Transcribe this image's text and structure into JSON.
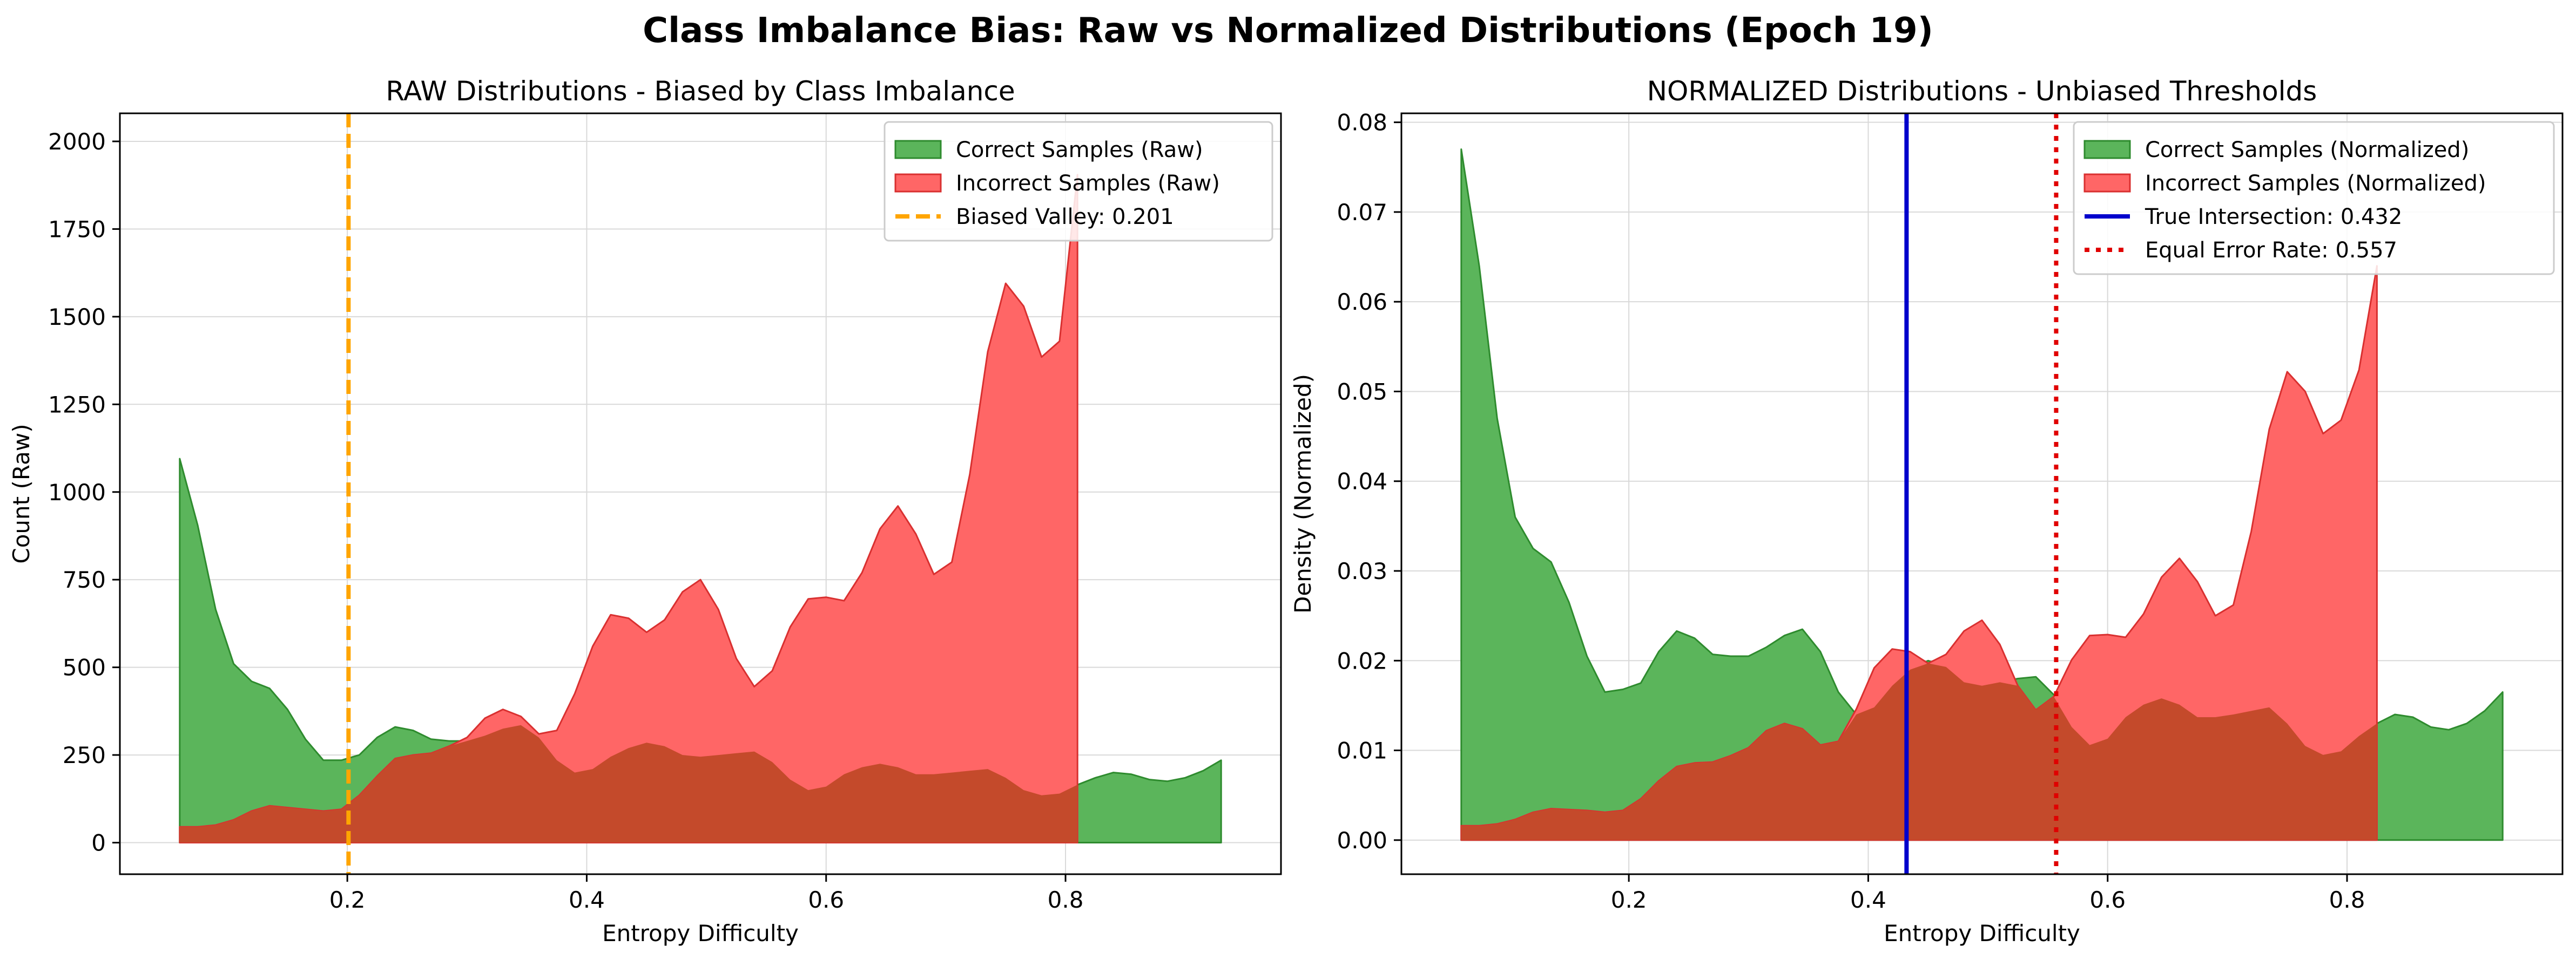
{
  "figure": {
    "suptitle": "Class Imbalance Bias: Raw vs Normalized Distributions (Epoch 19)"
  },
  "colors": {
    "correct_fill": "#5bb55b",
    "correct_edge": "#2e8b2e",
    "incorrect_fill": "#ff6666",
    "incorrect_edge": "#d93030",
    "overlap_fill": "#c44a2b",
    "biased_valley": "#ffa500",
    "true_intersection": "#0000cc",
    "equal_error_rate": "#e00000",
    "grid": "#d9d9d9"
  },
  "chart_data": [
    {
      "type": "area",
      "title": "RAW Distributions - Biased by Class Imbalance",
      "xlabel": "Entropy Difficulty",
      "ylabel": "Count (Raw)",
      "xlim": [
        0.01,
        0.98
      ],
      "ylim": [
        -90,
        2080
      ],
      "xticks": [
        0.2,
        0.4,
        0.6,
        0.8
      ],
      "xtick_labels": [
        "0.2",
        "0.4",
        "0.6",
        "0.8"
      ],
      "yticks": [
        0,
        250,
        500,
        750,
        1000,
        1250,
        1500,
        1750,
        2000
      ],
      "ytick_labels": [
        "0",
        "250",
        "500",
        "750",
        "1000",
        "1250",
        "1500",
        "1750",
        "2000"
      ],
      "grid": true,
      "legend_position": "top-right",
      "x": [
        0.06,
        0.075,
        0.09,
        0.105,
        0.12,
        0.135,
        0.15,
        0.165,
        0.18,
        0.195,
        0.21,
        0.225,
        0.24,
        0.255,
        0.27,
        0.285,
        0.3,
        0.315,
        0.33,
        0.345,
        0.36,
        0.375,
        0.39,
        0.405,
        0.42,
        0.435,
        0.45,
        0.465,
        0.48,
        0.495,
        0.51,
        0.525,
        0.54,
        0.555,
        0.57,
        0.585,
        0.6,
        0.615,
        0.63,
        0.645,
        0.66,
        0.675,
        0.69,
        0.705,
        0.72,
        0.735,
        0.75,
        0.765,
        0.78,
        0.795,
        0.81,
        0.825,
        0.84,
        0.855,
        0.87,
        0.885,
        0.9,
        0.915,
        0.93
      ],
      "series": [
        {
          "name": "Correct Samples (Raw)",
          "values": [
            1095,
            905,
            665,
            510,
            460,
            440,
            380,
            295,
            235,
            235,
            250,
            300,
            330,
            320,
            295,
            290,
            290,
            305,
            325,
            335,
            300,
            235,
            200,
            210,
            245,
            270,
            285,
            275,
            250,
            245,
            250,
            255,
            260,
            230,
            180,
            150,
            160,
            195,
            215,
            225,
            215,
            195,
            195,
            200,
            205,
            210,
            185,
            150,
            135,
            140,
            165,
            185,
            200,
            195,
            180,
            175,
            185,
            205,
            235
          ]
        },
        {
          "name": "Incorrect Samples (Raw)",
          "values": [
            45,
            45,
            50,
            65,
            90,
            105,
            100,
            95,
            90,
            95,
            135,
            190,
            240,
            250,
            255,
            275,
            300,
            355,
            380,
            360,
            310,
            320,
            425,
            560,
            650,
            640,
            600,
            635,
            715,
            750,
            665,
            525,
            445,
            490,
            615,
            695,
            700,
            690,
            770,
            895,
            960,
            880,
            765,
            800,
            1050,
            1400,
            1595,
            1530,
            1385,
            1430,
            1905,
            null,
            null,
            null,
            null,
            null,
            null,
            null,
            null
          ]
        }
      ],
      "reference_lines": [
        {
          "name": "Biased Valley: 0.201",
          "x": 0.201,
          "style": "dashed"
        }
      ]
    },
    {
      "type": "area",
      "title": "NORMALIZED Distributions - Unbiased Thresholds",
      "xlabel": "Entropy Difficulty",
      "ylabel": "Density (Normalized)",
      "xlim": [
        0.01,
        0.98
      ],
      "ylim": [
        -0.0038,
        0.081
      ],
      "xticks": [
        0.2,
        0.4,
        0.6,
        0.8
      ],
      "xtick_labels": [
        "0.2",
        "0.4",
        "0.6",
        "0.8"
      ],
      "yticks": [
        0.0,
        0.01,
        0.02,
        0.03,
        0.04,
        0.05,
        0.06,
        0.07,
        0.08
      ],
      "ytick_labels": [
        "0.00",
        "0.01",
        "0.02",
        "0.03",
        "0.04",
        "0.05",
        "0.06",
        "0.07",
        "0.08"
      ],
      "grid": true,
      "legend_position": "top-right",
      "x": [
        0.06,
        0.075,
        0.09,
        0.105,
        0.12,
        0.135,
        0.15,
        0.165,
        0.18,
        0.195,
        0.21,
        0.225,
        0.24,
        0.255,
        0.27,
        0.285,
        0.3,
        0.315,
        0.33,
        0.345,
        0.36,
        0.375,
        0.39,
        0.405,
        0.42,
        0.435,
        0.45,
        0.465,
        0.48,
        0.495,
        0.51,
        0.525,
        0.54,
        0.555,
        0.57,
        0.585,
        0.6,
        0.615,
        0.63,
        0.645,
        0.66,
        0.675,
        0.69,
        0.705,
        0.72,
        0.735,
        0.75,
        0.765,
        0.78,
        0.795,
        0.81,
        0.825,
        0.84,
        0.855,
        0.87,
        0.885,
        0.9,
        0.915,
        0.93
      ],
      "series": [
        {
          "name": "Correct Samples (Normalized)",
          "values": [
            0.077,
            0.064,
            0.047,
            0.036,
            0.0325,
            0.031,
            0.0265,
            0.0205,
            0.0165,
            0.0168,
            0.0175,
            0.021,
            0.0233,
            0.0225,
            0.0207,
            0.0205,
            0.0205,
            0.0215,
            0.0228,
            0.0235,
            0.021,
            0.0165,
            0.014,
            0.0148,
            0.0172,
            0.019,
            0.02,
            0.0193,
            0.0176,
            0.0172,
            0.0176,
            0.018,
            0.0182,
            0.0162,
            0.0126,
            0.0106,
            0.0113,
            0.0137,
            0.0151,
            0.0158,
            0.0151,
            0.0137,
            0.0137,
            0.014,
            0.0144,
            0.0148,
            0.013,
            0.0105,
            0.0095,
            0.0099,
            0.0116,
            0.013,
            0.014,
            0.0137,
            0.0126,
            0.0123,
            0.013,
            0.0144,
            0.0165
          ]
        },
        {
          "name": "Incorrect Samples (Normalized)",
          "values": [
            0.0016,
            0.0016,
            0.0018,
            0.0023,
            0.0031,
            0.0035,
            0.0034,
            0.0033,
            0.0031,
            0.0033,
            0.0046,
            0.0066,
            0.0082,
            0.0086,
            0.0087,
            0.0094,
            0.0103,
            0.0122,
            0.013,
            0.0124,
            0.0106,
            0.011,
            0.0146,
            0.0192,
            0.0213,
            0.021,
            0.0197,
            0.0207,
            0.0233,
            0.0245,
            0.0218,
            0.0172,
            0.0145,
            0.016,
            0.0201,
            0.0228,
            0.0229,
            0.0226,
            0.0252,
            0.0293,
            0.0314,
            0.0288,
            0.025,
            0.0262,
            0.0344,
            0.0458,
            0.0522,
            0.05,
            0.0453,
            0.0468,
            0.0524,
            0.064,
            null,
            null,
            null,
            null,
            null,
            null,
            null
          ]
        }
      ],
      "reference_lines": [
        {
          "name": "True Intersection: 0.432",
          "x": 0.432,
          "style": "solid"
        },
        {
          "name": "Equal Error Rate: 0.557",
          "x": 0.557,
          "style": "dotted"
        }
      ]
    }
  ]
}
